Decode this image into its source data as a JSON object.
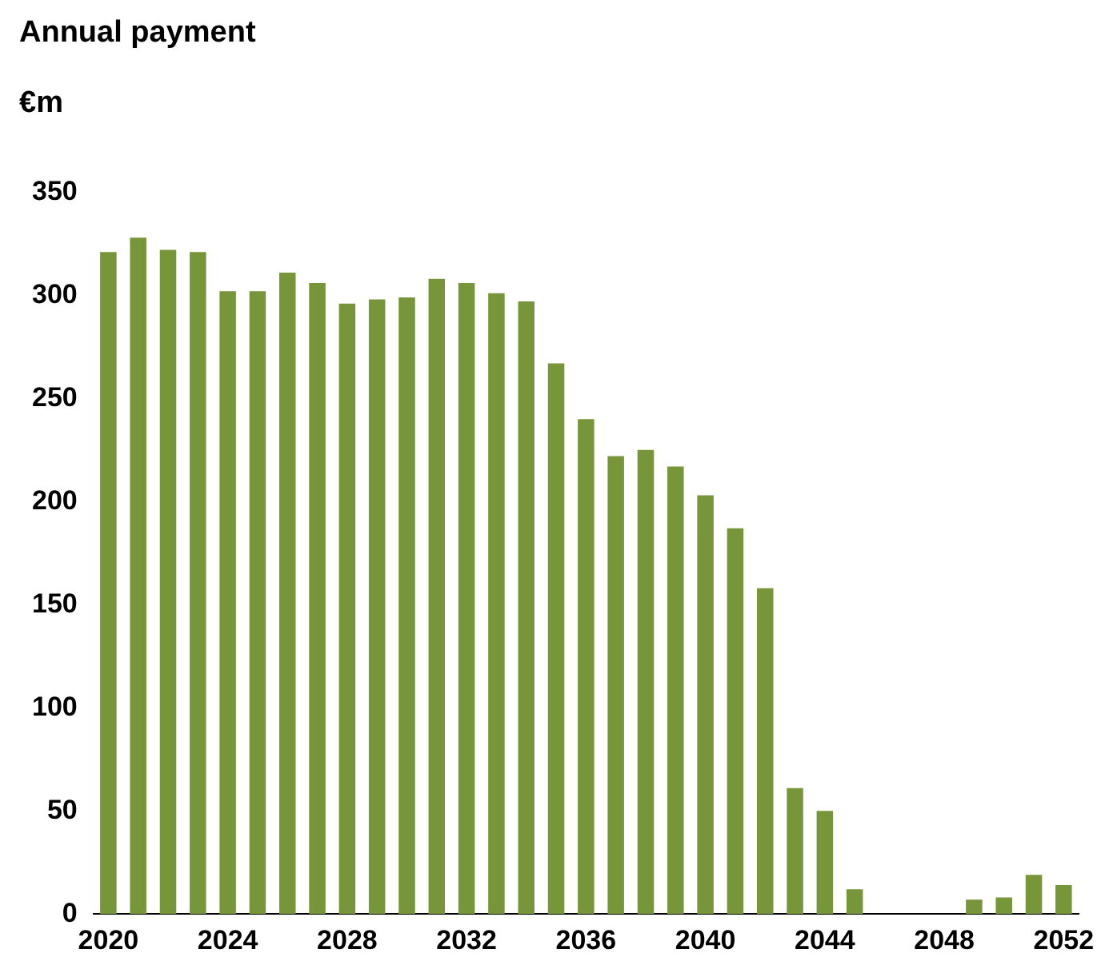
{
  "chart_data": {
    "type": "bar",
    "title": "Annual payment",
    "ylabel": "€m",
    "categories": [
      "2020",
      null,
      null,
      null,
      "2024",
      null,
      null,
      null,
      "2028",
      null,
      null,
      null,
      "2032",
      null,
      null,
      null,
      "2036",
      null,
      null,
      null,
      "2040",
      null,
      null,
      null,
      "2044",
      null,
      null,
      null,
      "2048",
      null,
      null,
      null,
      "2052"
    ],
    "values": [
      321,
      328,
      322,
      321,
      302,
      302,
      311,
      306,
      296,
      298,
      299,
      308,
      306,
      301,
      297,
      267,
      240,
      222,
      225,
      217,
      203,
      187,
      158,
      61,
      50,
      12,
      0,
      0,
      0,
      7,
      8,
      19,
      14
    ],
    "color": "#77963a",
    "ylim": [
      0,
      350
    ],
    "yticks": [
      0,
      50,
      100,
      150,
      200,
      250,
      300,
      350
    ],
    "grid": false,
    "legend": false
  }
}
